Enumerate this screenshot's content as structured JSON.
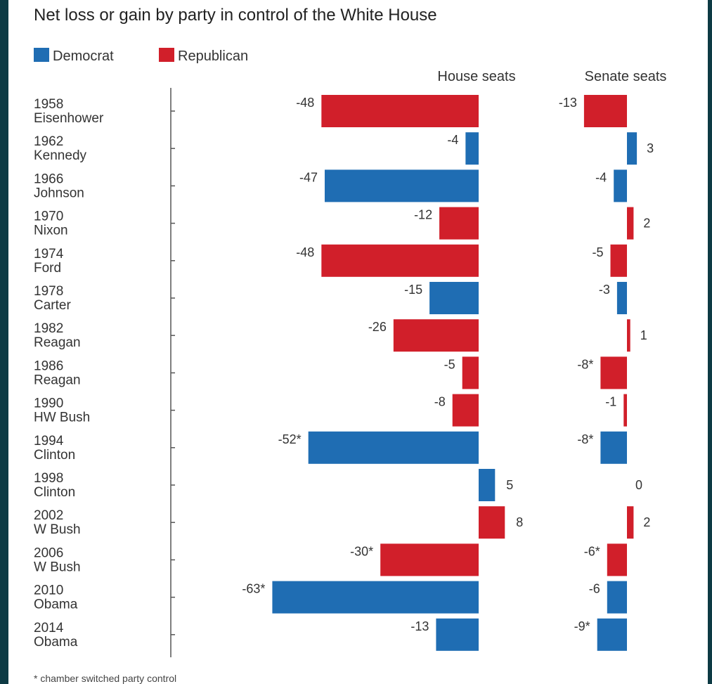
{
  "chart_data": {
    "type": "bar",
    "title": "Net loss or gain by party in control of the White House",
    "legend": [
      {
        "name": "Democrat",
        "color": "#1f6db3"
      },
      {
        "name": "Republican",
        "color": "#d11f2a"
      }
    ],
    "legend_placement": "top-left",
    "categories": [
      {
        "year": "1958",
        "president": "Eisenhower",
        "party": "Republican"
      },
      {
        "year": "1962",
        "president": "Kennedy",
        "party": "Democrat"
      },
      {
        "year": "1966",
        "president": "Johnson",
        "party": "Democrat"
      },
      {
        "year": "1970",
        "president": "Nixon",
        "party": "Republican"
      },
      {
        "year": "1974",
        "president": "Ford",
        "party": "Republican"
      },
      {
        "year": "1978",
        "president": "Carter",
        "party": "Democrat"
      },
      {
        "year": "1982",
        "president": "Reagan",
        "party": "Republican"
      },
      {
        "year": "1986",
        "president": "Reagan",
        "party": "Republican"
      },
      {
        "year": "1990",
        "president": "HW Bush",
        "party": "Republican"
      },
      {
        "year": "1994",
        "president": "Clinton",
        "party": "Democrat"
      },
      {
        "year": "1998",
        "president": "Clinton",
        "party": "Democrat"
      },
      {
        "year": "2002",
        "president": "W Bush",
        "party": "Republican"
      },
      {
        "year": "2006",
        "president": "W Bush",
        "party": "Republican"
      },
      {
        "year": "2010",
        "president": "Obama",
        "party": "Democrat"
      },
      {
        "year": "2014",
        "president": "Obama",
        "party": "Democrat"
      }
    ],
    "series": [
      {
        "name": "House seats",
        "values": [
          -48,
          -4,
          -47,
          -12,
          -48,
          -15,
          -26,
          -5,
          -8,
          -52,
          5,
          8,
          -30,
          -63,
          -13
        ],
        "labels": [
          "-48",
          "-4",
          "-47",
          "-12",
          "-48",
          "-15",
          "-26",
          "-5",
          "-8",
          "-52*",
          "5",
          "8",
          "-30*",
          "-63*",
          "-13"
        ]
      },
      {
        "name": "Senate seats",
        "values": [
          -13,
          3,
          -4,
          2,
          -5,
          -3,
          1,
          -8,
          -1,
          -8,
          0,
          2,
          -6,
          -6,
          -9
        ],
        "labels": [
          "-13",
          "3",
          "-4",
          "2",
          "-5",
          "-3",
          "1",
          "-8*",
          "-1",
          "-8*",
          "0",
          "2",
          "-6*",
          "-6",
          "-9*"
        ]
      }
    ],
    "footnote": "* chamber switched party control",
    "grid": false
  }
}
